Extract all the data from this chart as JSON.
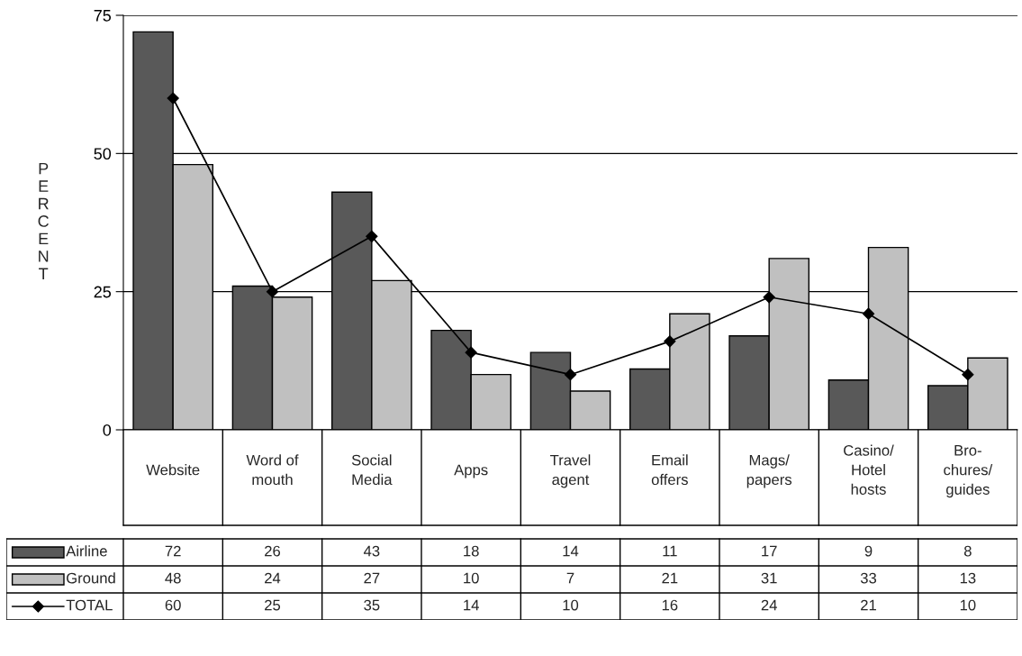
{
  "chart_data": {
    "type": "bar",
    "ylabel": "PERCENT",
    "categories": [
      "Website",
      "Word of\nmouth",
      "Social\nMedia",
      "Apps",
      "Travel\nagent",
      "Email\noffers",
      "Mags/\npapers",
      "Casino/\nHotel\nhosts",
      "Bro-\nchures/\nguides"
    ],
    "series": [
      {
        "name": "Airline",
        "color": "#595959",
        "values": [
          72,
          26,
          43,
          18,
          14,
          11,
          17,
          9,
          8
        ]
      },
      {
        "name": "Ground",
        "color": "#c0c0c0",
        "values": [
          48,
          24,
          27,
          10,
          7,
          21,
          31,
          33,
          13
        ]
      },
      {
        "name": "TOTAL",
        "type": "line",
        "color": "#000000",
        "marker": "diamond",
        "line_style": "solid",
        "values": [
          60,
          25,
          35,
          14,
          10,
          16,
          24,
          21,
          10
        ]
      }
    ],
    "ylim": [
      0,
      75
    ],
    "yticks": [
      0,
      25,
      50,
      75
    ],
    "grid": "y",
    "data_labels": true,
    "legend": "bottom left"
  }
}
